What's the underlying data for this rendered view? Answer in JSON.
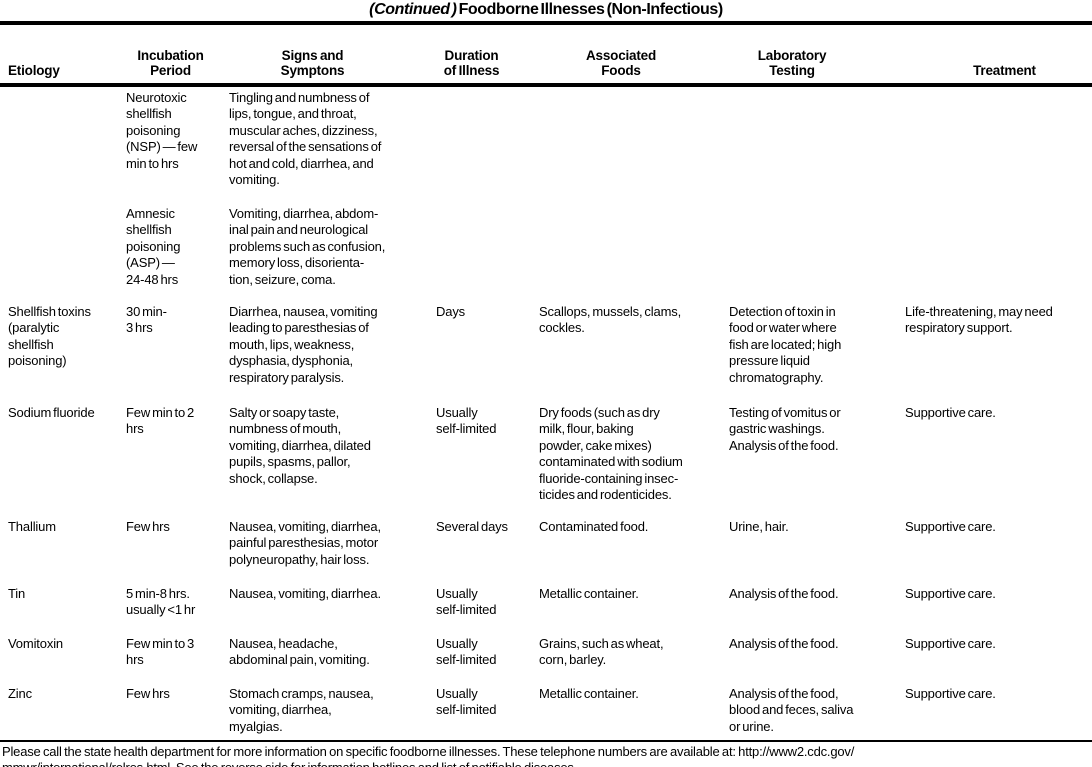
{
  "title": {
    "continued": "(Continued )",
    "text": "Foodborne Illnesses (Non-Infectious)"
  },
  "table": {
    "headers": {
      "etiology": "Etiology",
      "incubation_period": "Incubation\nPeriod",
      "signs_and_symptoms": "Signs and\nSymptons",
      "duration_of_illness": "Duration\nof Illness",
      "associated_foods": "Associated\nFoods",
      "laboratory_testing": "Laboratory\nTesting",
      "treatment": "Treatment"
    },
    "rows": [
      {
        "etiology": "",
        "incubation": "Neurotoxic\nshellfish\npoisoning\n(NSP) — few\nmin to hrs",
        "signs": "Tingling and numbness of\nlips, tongue, and throat,\nmuscular aches, dizziness,\nreversal of the sensations of\nhot and cold, diarrhea, and\nvomiting.",
        "duration": "",
        "foods": "",
        "laboratory": "",
        "treatment": ""
      },
      {
        "etiology": "",
        "incubation": "Amnesic\nshellfish\npoisoning\n(ASP) —\n24-48 hrs",
        "signs": "Vomiting, diarrhea, abdom-\ninal pain and neurological\nproblems such as confusion,\nmemory loss, disorienta-\ntion, seizure, coma.",
        "duration": "",
        "foods": "",
        "laboratory": "",
        "treatment": ""
      },
      {
        "etiology": "Shellfish toxins\n(paralytic\nshellfish\npoisoning)",
        "incubation": "30 min-\n3 hrs",
        "signs": "Diarrhea, nausea, vomiting\nleading to paresthesias of\nmouth, lips, weakness,\ndysphasia, dysphonia,\nrespiratory paralysis.",
        "duration": "Days",
        "foods": "Scallops, mussels, clams,\ncockles.",
        "laboratory": "Detection of toxin in\nfood or water where\nfish are located; high\npressure liquid\nchromatography.",
        "treatment": "Life-threatening, may need\nrespiratory support."
      },
      {
        "etiology": "Sodium fluoride",
        "incubation": "Few min to 2\nhrs",
        "signs": "Salty or soapy taste,\nnumbness of mouth,\nvomiting, diarrhea, dilated\npupils, spasms, pallor,\nshock, collapse.",
        "duration": "Usually\nself-limited",
        "foods": "Dry foods (such as dry\nmilk, flour, baking\npowder, cake mixes)\ncontaminated with sodium\nfluoride-containing insec-\nticides and rodenticides.",
        "laboratory": "Testing of vomitus or\ngastric washings.\nAnalysis of the food.",
        "treatment": "Supportive care."
      },
      {
        "etiology": "Thallium",
        "incubation": "Few hrs",
        "signs": "Nausea, vomiting, diarrhea,\npainful paresthesias, motor\npolyneuropathy, hair loss.",
        "duration": "Several days",
        "foods": "Contaminated food.",
        "laboratory": "Urine, hair.",
        "treatment": "Supportive care."
      },
      {
        "etiology": "Tin",
        "incubation": "5 min-8 hrs.\nusually <1 hr",
        "signs": "Nausea, vomiting, diarrhea.",
        "duration": "Usually\nself-limited",
        "foods": "Metallic container.",
        "laboratory": "Analysis of the food.",
        "treatment": "Supportive care."
      },
      {
        "etiology": "Vomitoxin",
        "incubation": "Few min to 3\nhrs",
        "signs": "Nausea, headache,\nabdominal pain, vomiting.",
        "duration": "Usually\nself-limited",
        "foods": "Grains, such as wheat,\ncorn, barley.",
        "laboratory": "Analysis of the food.",
        "treatment": "Supportive care."
      },
      {
        "etiology": "Zinc",
        "incubation": "Few hrs",
        "signs": "Stomach cramps, nausea,\nvomiting, diarrhea,\nmyalgias.",
        "duration": "Usually\nself-limited",
        "foods": "Metallic container.",
        "laboratory": "Analysis of the food,\nblood and feces, saliva\nor urine.",
        "treatment": "Supportive care."
      }
    ]
  },
  "footer": "Please call the state health department for more information on specific foodborne illnesses. These telephone numbers are available at: http://www2.cdc.gov/\nmmwr/international/relres.html. See the reverse side for information hotlines and list of notifiable diseases."
}
